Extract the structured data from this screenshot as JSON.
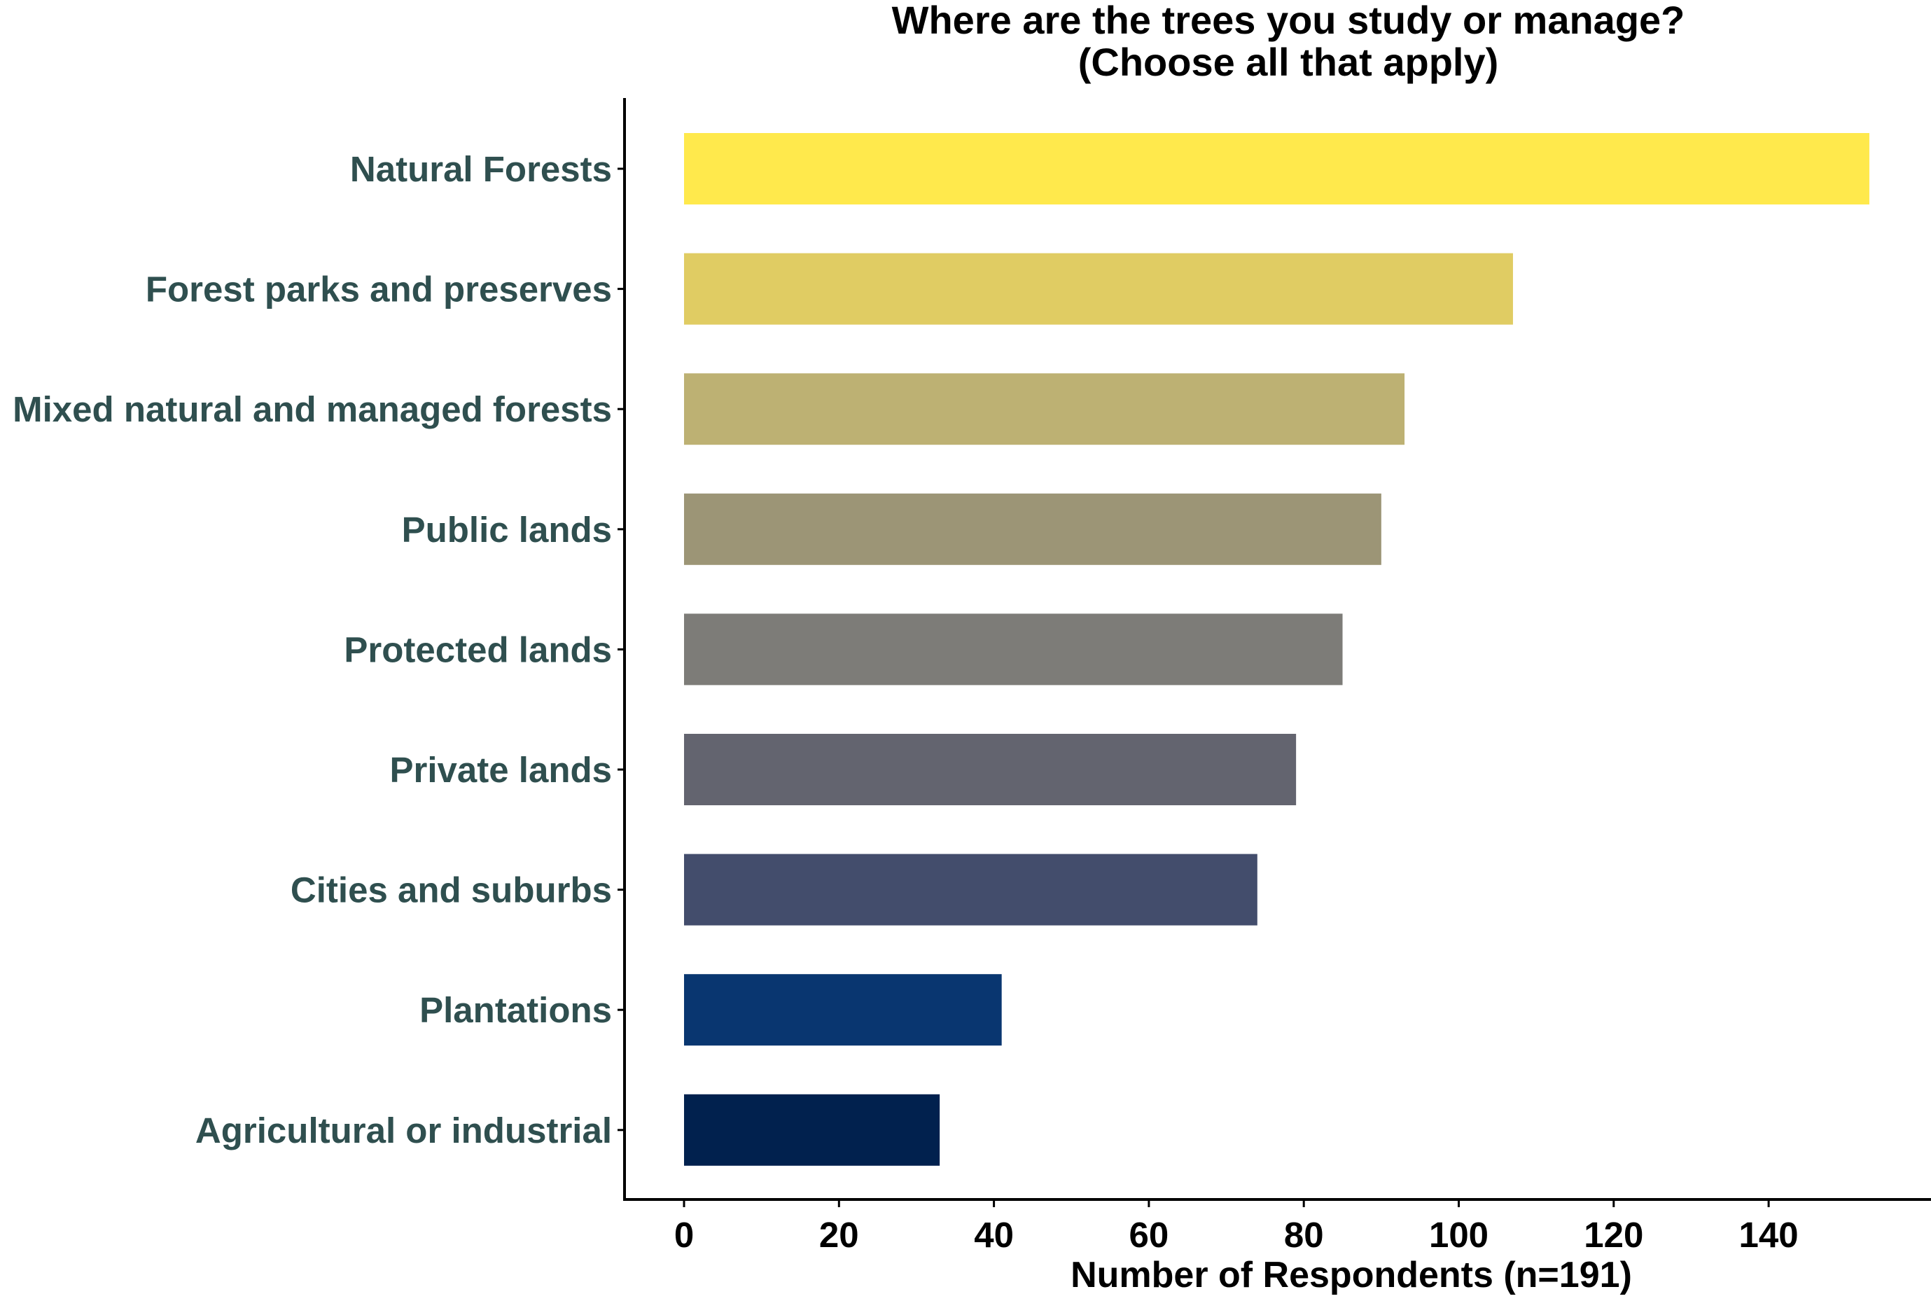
{
  "chart_data": {
    "type": "bar",
    "orientation": "horizontal",
    "title_lines": [
      "Where are the trees you study or manage?",
      "(Choose all that apply)"
    ],
    "xlabel": "Number of Respondents (n=191)",
    "ylabel": "",
    "categories": [
      "Natural Forests",
      "Forest parks and preserves",
      "Mixed natural and managed forests",
      "Public lands",
      "Protected lands",
      "Private lands",
      "Cities and suburbs",
      "Plantations",
      "Agricultural or industrial"
    ],
    "values": [
      153,
      107,
      93,
      90,
      85,
      79,
      74,
      41,
      33
    ],
    "colors": [
      "#FFE94C",
      "#E0CC63",
      "#BDB173",
      "#9C9576",
      "#7D7C78",
      "#63646F",
      "#434D6C",
      "#093670",
      "#01214E"
    ],
    "x_ticks": [
      0,
      20,
      40,
      60,
      80,
      100,
      120,
      140
    ],
    "xlim": [
      -7.5,
      160.5
    ],
    "grid": false,
    "legend": "none"
  }
}
